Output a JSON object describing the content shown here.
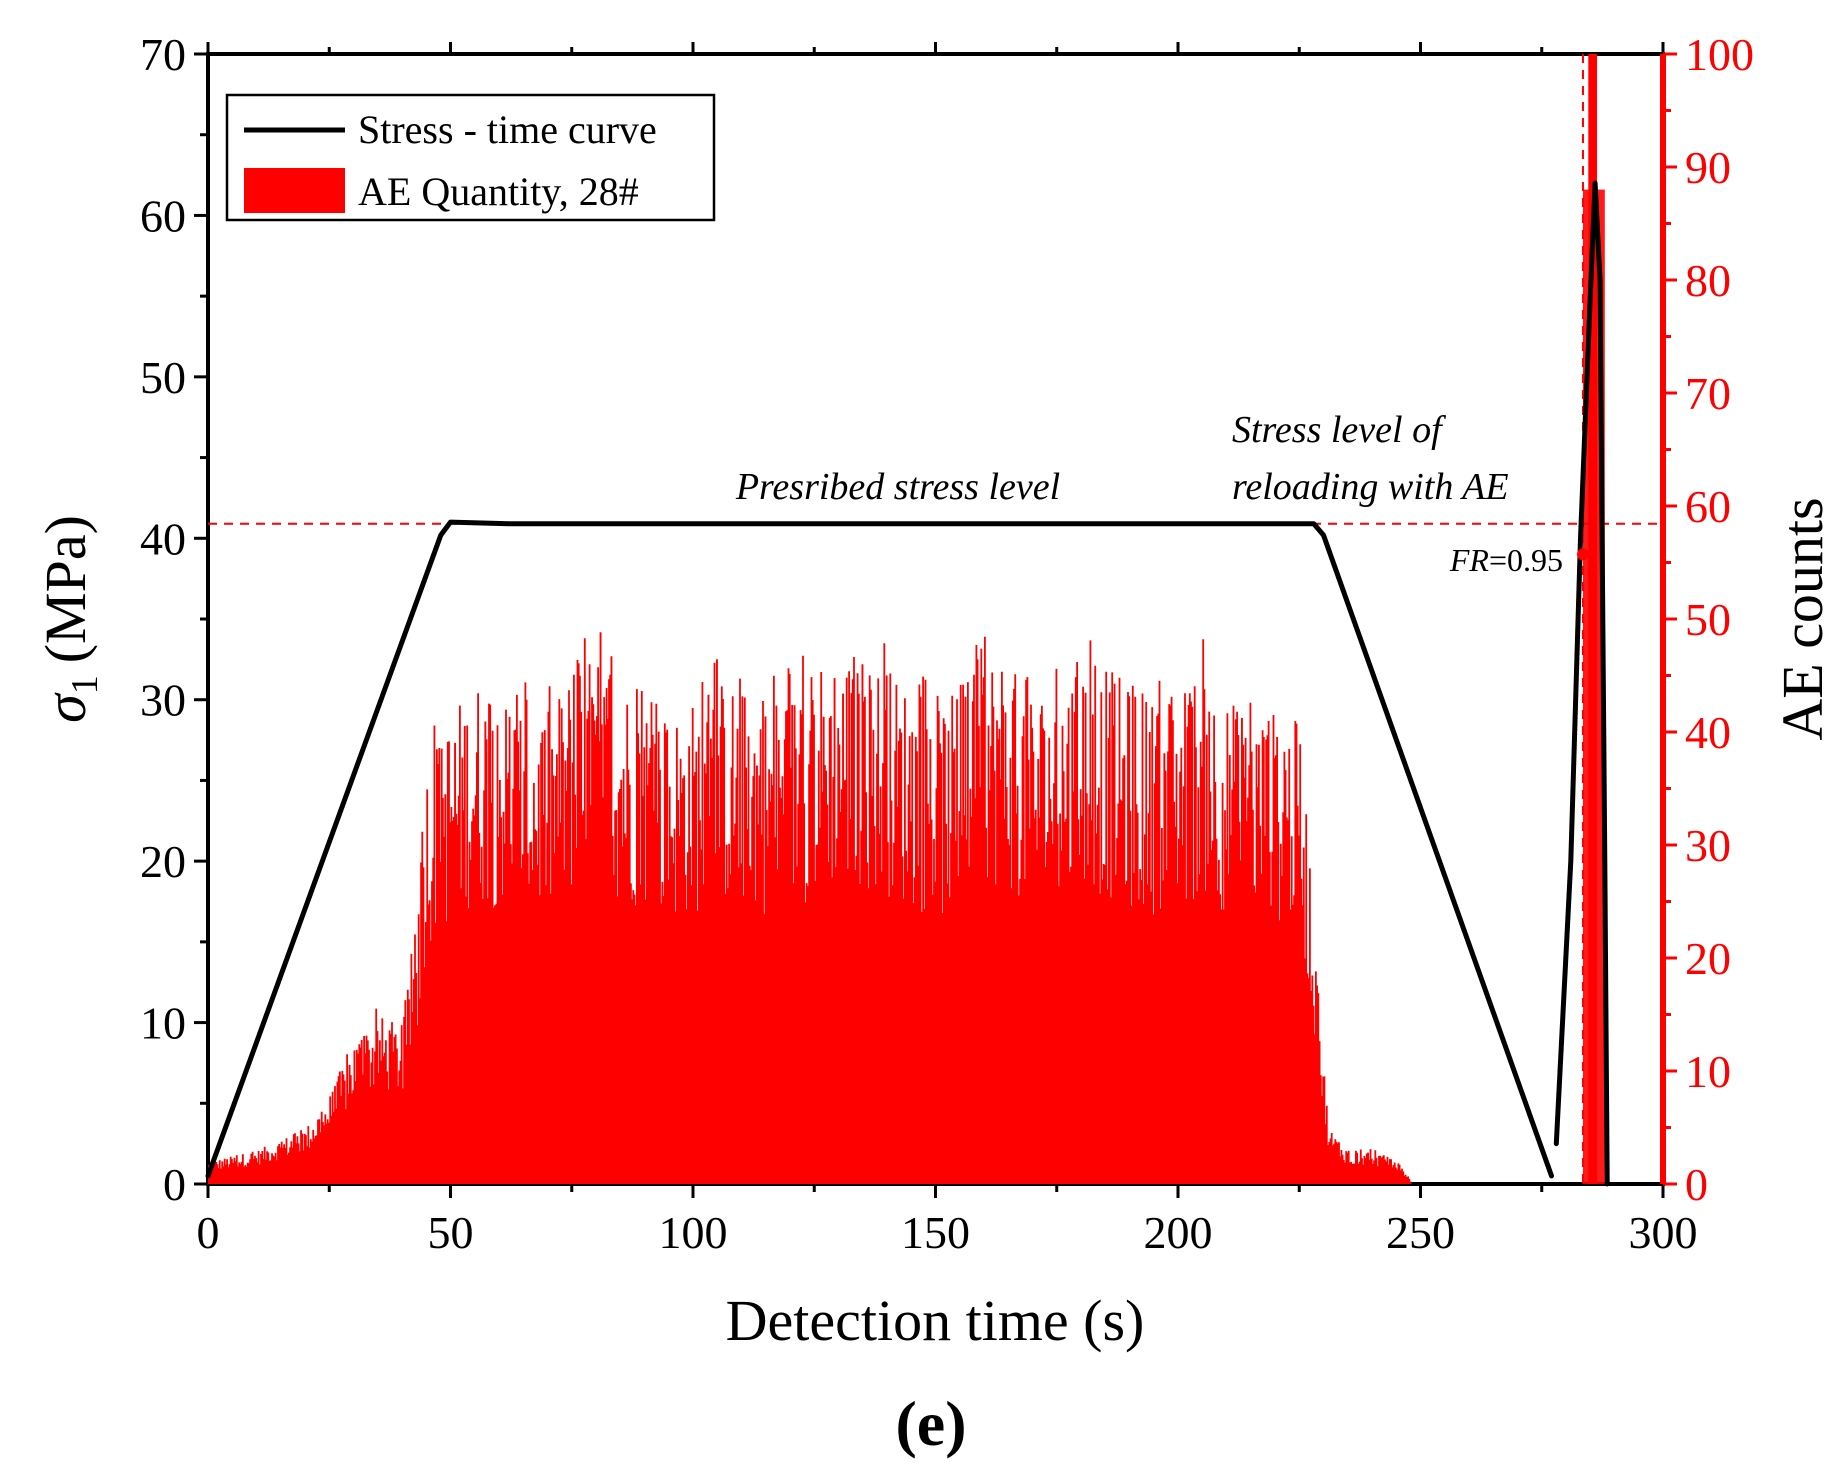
{
  "chart_data": {
    "type": "bar+line (dual axis)",
    "panel_label": "(e)",
    "xlabel": "Detection time (s)",
    "ylabel_left": "σ1 (MPa)",
    "ylabel_left_symbol": "σ",
    "ylabel_left_subscript": "1",
    "ylabel_left_unit": "(MPa)",
    "ylabel_right": "AE counts",
    "xlim": [
      0,
      300
    ],
    "ylim_left": [
      0,
      70
    ],
    "ylim_right": [
      0,
      100
    ],
    "x_ticks": [
      "0",
      "50",
      "100",
      "150",
      "200",
      "250",
      "300"
    ],
    "y_left_ticks": [
      "0",
      "10",
      "20",
      "30",
      "40",
      "50",
      "60",
      "70"
    ],
    "y_right_ticks": [
      "0",
      "10",
      "20",
      "30",
      "40",
      "50",
      "60",
      "70",
      "80",
      "90",
      "100"
    ],
    "colors": {
      "stress": "#000000",
      "ae": "#ff0000",
      "axis_right": "#ff0000"
    },
    "legend": [
      {
        "label": "Stress - time curve",
        "kind": "line",
        "color": "#000000"
      },
      {
        "label": "AE Quantity, 28#",
        "kind": "bar",
        "color": "#ff0000"
      }
    ],
    "legend_position": "top-left",
    "stress_series": {
      "name": "Stress - time curve",
      "segments": [
        [
          [
            0,
            0.5
          ],
          [
            48,
            40.2
          ],
          [
            50,
            41.0
          ],
          [
            62,
            40.9
          ],
          [
            228,
            40.9
          ],
          [
            230,
            40.2
          ],
          [
            277,
            0.5
          ]
        ],
        [
          [
            278,
            2.5
          ],
          [
            281,
            20
          ],
          [
            283,
            40
          ],
          [
            285,
            55
          ],
          [
            286,
            62
          ],
          [
            287,
            56
          ],
          [
            288,
            20
          ],
          [
            288.5,
            0
          ]
        ]
      ]
    },
    "ae_envelope": {
      "name": "AE Quantity, 28#",
      "x": [
        0,
        5,
        10,
        15,
        20,
        25,
        30,
        35,
        40,
        43,
        45,
        50,
        55,
        60,
        65,
        70,
        75,
        80,
        85,
        90,
        95,
        100,
        105,
        110,
        115,
        120,
        125,
        130,
        135,
        140,
        145,
        150,
        155,
        160,
        165,
        170,
        175,
        180,
        185,
        190,
        195,
        200,
        205,
        210,
        215,
        220,
        225,
        227,
        229,
        231,
        235,
        240,
        245,
        247,
        248
      ],
      "values": [
        2,
        2.5,
        3,
        4,
        5,
        8,
        13,
        15,
        14,
        24,
        38,
        42,
        45,
        44,
        43,
        42,
        46,
        47,
        45,
        44,
        42,
        43,
        45,
        44,
        43,
        44,
        46,
        48,
        47,
        46,
        44,
        42,
        44,
        48,
        47,
        44,
        45,
        47,
        46,
        44,
        43,
        44,
        46,
        43,
        42,
        42,
        41,
        30,
        15,
        5,
        3,
        3,
        2,
        1,
        0
      ]
    },
    "ae_spike": {
      "x": 285.5,
      "value": 100
    },
    "reference_lines": [
      {
        "orientation": "horizontal",
        "axis": "left",
        "value": 40.9,
        "style": "dashed",
        "color": "#ff0000"
      },
      {
        "orientation": "vertical",
        "value": 283.5,
        "style": "dashed",
        "color": "#ff0000"
      }
    ],
    "marker": {
      "x": 283.5,
      "y_left": 39.0
    },
    "annotations": {
      "prescribed": "Presribed stress level",
      "reloading_line1": "Stress level of",
      "reloading_line2": "reloading with AE",
      "fr_italic": "FR",
      "fr_value": "=0.95"
    }
  }
}
